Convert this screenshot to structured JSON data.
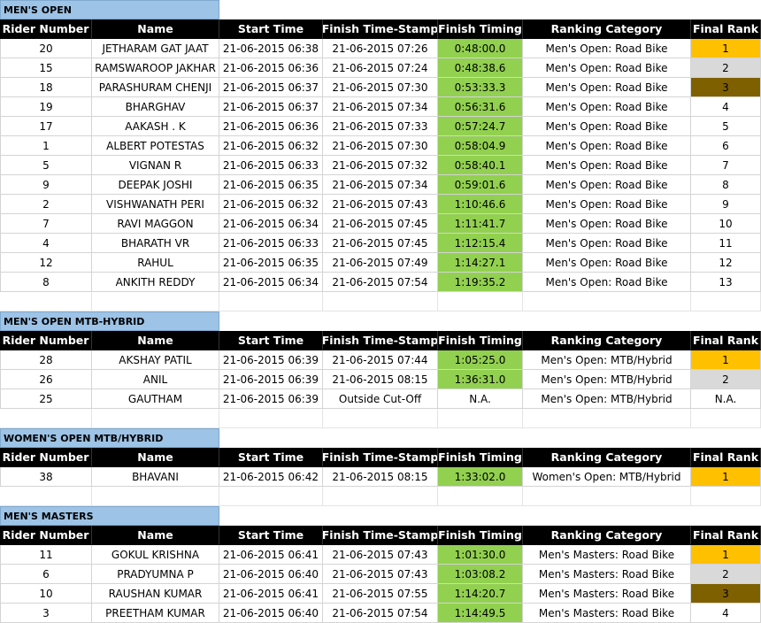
{
  "headers": [
    "Rider Number",
    "Name",
    "Start Time",
    "Finish Time-Stamp",
    "Finish Timing",
    "Ranking Category",
    "Final Rank"
  ],
  "sections": [
    {
      "title": "MEN'S OPEN",
      "rows": [
        [
          "20",
          "JETHARAM GAT JAAT",
          "21-06-2015 06:38",
          "21-06-2015 07:26",
          "0:48:00.0",
          "Men's Open: Road Bike",
          "1"
        ],
        [
          "15",
          "RAMSWAROOP JAKHAR",
          "21-06-2015 06:36",
          "21-06-2015 07:24",
          "0:48:38.6",
          "Men's Open: Road Bike",
          "2"
        ],
        [
          "18",
          "PARASHURAM CHENJI",
          "21-06-2015 06:37",
          "21-06-2015 07:30",
          "0:53:33.3",
          "Men's Open: Road Bike",
          "3"
        ],
        [
          "19",
          "BHARGHAV",
          "21-06-2015 06:37",
          "21-06-2015 07:34",
          "0:56:31.6",
          "Men's Open: Road Bike",
          "4"
        ],
        [
          "17",
          "AAKASH . K",
          "21-06-2015 06:36",
          "21-06-2015 07:33",
          "0:57:24.7",
          "Men's Open: Road Bike",
          "5"
        ],
        [
          "1",
          "ALBERT POTESTAS",
          "21-06-2015 06:32",
          "21-06-2015 07:30",
          "0:58:04.9",
          "Men's Open: Road Bike",
          "6"
        ],
        [
          "5",
          "VIGNAN R",
          "21-06-2015 06:33",
          "21-06-2015 07:32",
          "0:58:40.1",
          "Men's Open: Road Bike",
          "7"
        ],
        [
          "9",
          "DEEPAK JOSHI",
          "21-06-2015 06:35",
          "21-06-2015 07:34",
          "0:59:01.6",
          "Men's Open: Road Bike",
          "8"
        ],
        [
          "2",
          "VISHWANATH PERI",
          "21-06-2015 06:32",
          "21-06-2015 07:43",
          "1:10:46.6",
          "Men's Open: Road Bike",
          "9"
        ],
        [
          "7",
          "RAVI MAGGON",
          "21-06-2015 06:34",
          "21-06-2015 07:45",
          "1:11:41.7",
          "Men's Open: Road Bike",
          "10"
        ],
        [
          "4",
          "BHARATH VR",
          "21-06-2015 06:33",
          "21-06-2015 07:45",
          "1:12:15.4",
          "Men's Open: Road Bike",
          "11"
        ],
        [
          "12",
          "RAHUL",
          "21-06-2015 06:35",
          "21-06-2015 07:49",
          "1:14:27.1",
          "Men's Open: Road Bike",
          "12"
        ],
        [
          "8",
          "ANKITH REDDY",
          "21-06-2015 06:34",
          "21-06-2015 07:54",
          "1:19:35.2",
          "Men's Open: Road Bike",
          "13"
        ]
      ]
    },
    {
      "title": "MEN'S OPEN MTB-HYBRID",
      "rows": [
        [
          "28",
          "AKSHAY PATIL",
          "21-06-2015 06:39",
          "21-06-2015 07:44",
          "1:05:25.0",
          "Men's Open: MTB/Hybrid",
          "1"
        ],
        [
          "26",
          "ANIL",
          "21-06-2015 06:39",
          "21-06-2015 08:15",
          "1:36:31.0",
          "Men's Open: MTB/Hybrid",
          "2"
        ],
        [
          "25",
          "GAUTHAM",
          "21-06-2015 06:39",
          "Outside Cut-Off",
          "N.A.",
          "Men's Open: MTB/Hybrid",
          "N.A."
        ]
      ]
    },
    {
      "title": "WOMEN'S OPEN MTB/HYBRID",
      "rows": [
        [
          "38",
          "BHAVANI",
          "21-06-2015 06:42",
          "21-06-2015 08:15",
          "1:33:02.0",
          "Women's Open: MTB/Hybrid",
          "1"
        ]
      ]
    },
    {
      "title": "MEN'S MASTERS",
      "rows": [
        [
          "11",
          "GOKUL KRISHNA",
          "21-06-2015 06:41",
          "21-06-2015 07:43",
          "1:01:30.0",
          "Men's Masters: Road Bike",
          "1"
        ],
        [
          "6",
          "PRADYUMNA P",
          "21-06-2015 06:40",
          "21-06-2015 07:43",
          "1:03:08.2",
          "Men's Masters: Road Bike",
          "2"
        ],
        [
          "10",
          "RAUSHAN KUMAR",
          "21-06-2015 06:41",
          "21-06-2015 07:55",
          "1:14:20.7",
          "Men's Masters: Road Bike",
          "3"
        ],
        [
          "3",
          "PREETHAM KUMAR",
          "21-06-2015 06:40",
          "21-06-2015 07:54",
          "1:14:49.5",
          "Men's Masters: Road Bike",
          "4"
        ]
      ]
    }
  ],
  "colors": {
    "section_title_bg": "#9dc3e6",
    "header_bg": "#000000",
    "timing_highlight": "#92d050",
    "rank_gold": "#ffc000",
    "rank_silver": "#d9d9d9",
    "rank_bronze": "#7f6000"
  }
}
